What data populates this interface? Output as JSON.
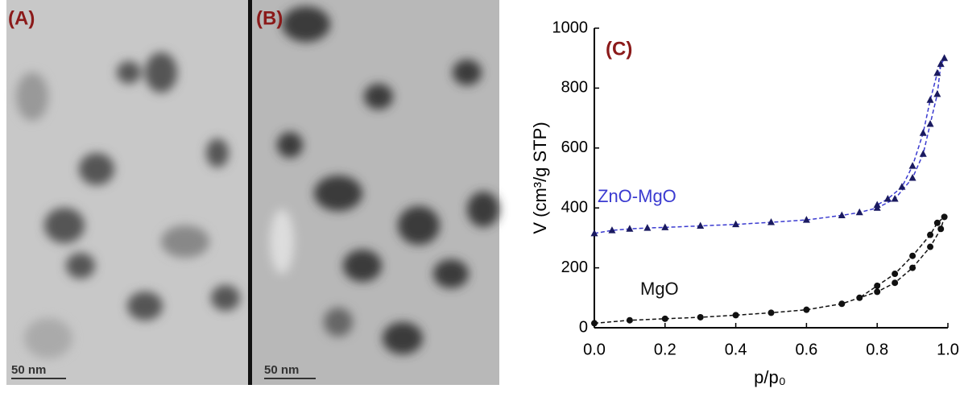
{
  "panels": [
    {
      "label": "(A)",
      "scale_bar": "50 nm"
    },
    {
      "label": "(B)",
      "scale_bar": "50 nm"
    }
  ],
  "chart_data": {
    "type": "scatter",
    "panel_label": "(C)",
    "xlabel": "p/p₀",
    "ylabel": "V (cm³/g STP)",
    "xlim": [
      0,
      1
    ],
    "ylim": [
      0,
      1000
    ],
    "xticks": [
      {
        "value": 0,
        "label": "0.0"
      },
      0.2,
      0.4,
      0.6,
      0.8,
      {
        "value": 1,
        "label": "1.0"
      }
    ],
    "yticks": [
      0,
      200,
      400,
      600,
      800,
      1000
    ],
    "series": [
      {
        "name": "ZnO-MgO",
        "color": "#3a3ad0",
        "marker": "triangle",
        "x": [
          0.0,
          0.05,
          0.1,
          0.15,
          0.2,
          0.3,
          0.4,
          0.5,
          0.6,
          0.7,
          0.75,
          0.8,
          0.85,
          0.9,
          0.93,
          0.95,
          0.97,
          0.98,
          0.99,
          0.97,
          0.95,
          0.93,
          0.9,
          0.87,
          0.83,
          0.8
        ],
        "values": [
          315,
          325,
          330,
          333,
          335,
          340,
          345,
          352,
          360,
          375,
          385,
          400,
          430,
          500,
          580,
          680,
          780,
          880,
          900,
          850,
          760,
          650,
          540,
          470,
          430,
          410
        ]
      },
      {
        "name": "MgO",
        "color": "#111111",
        "marker": "circle",
        "x": [
          0.0,
          0.1,
          0.2,
          0.3,
          0.4,
          0.5,
          0.6,
          0.7,
          0.8,
          0.85,
          0.9,
          0.95,
          0.98,
          0.99,
          0.97,
          0.95,
          0.9,
          0.85,
          0.8,
          0.75
        ],
        "values": [
          15,
          25,
          30,
          35,
          42,
          50,
          60,
          80,
          120,
          150,
          200,
          270,
          330,
          370,
          350,
          310,
          240,
          180,
          140,
          100
        ]
      }
    ]
  }
}
